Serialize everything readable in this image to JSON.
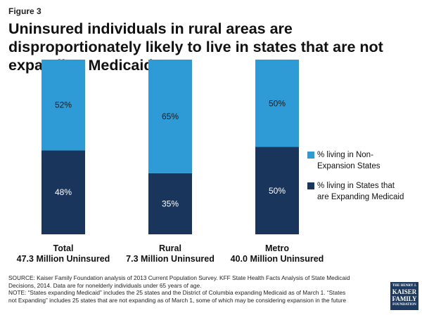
{
  "figure_label": "Figure 3",
  "title": "Uninsured individuals in rural areas are disproportionately likely to live in states that are not expanding Medicaid",
  "colors": {
    "non_expansion": "#2e9ad6",
    "expanding": "#19355c",
    "label_light": "#1a1a1a",
    "label_dark": "#ffffff"
  },
  "chart_data": {
    "type": "bar",
    "stacked": true,
    "percent": true,
    "categories": [
      "Total",
      "Rural",
      "Metro"
    ],
    "category_sublabels": [
      "47.3 Million Uninsured",
      "7.3 Million Uninsured",
      "40.0 Million Uninsured"
    ],
    "ylim": [
      0,
      100
    ],
    "grid": false,
    "legend_position": "right",
    "series": [
      {
        "name": "% living in States that are Expanding Medicaid",
        "values": [
          48,
          35,
          50
        ],
        "labels": [
          "48%",
          "35%",
          "50%"
        ],
        "color": "#19355c"
      },
      {
        "name": "% living in Non-Expansion States",
        "values": [
          52,
          65,
          50
        ],
        "labels": [
          "52%",
          "65%",
          "50%"
        ],
        "color": "#2e9ad6"
      }
    ]
  },
  "legend": {
    "non_expansion": {
      "line1": "% living in Non-",
      "line2": "Expansion States"
    },
    "expanding": {
      "line1": "% living in States that",
      "line2": "are Expanding Medicaid"
    }
  },
  "source": {
    "line1": "SOURCE: Kaiser Family Foundation analysis of 2013 Current Population Survey. KFF State Health Facts Analysis of State Medicaid",
    "line2": "Decisions, 2014. Data are for nonelderly individuals under 65 years of age.",
    "line3": "NOTE: “States expanding Medicaid” includes the 25 states and the District of Columbia expanding Medicaid as of March 1. “States",
    "line4": "not Expanding” includes 25 states that are not expanding as of March 1, some of which may be considering expansion in the future"
  },
  "logo": {
    "line1": "THE HENRY J.",
    "line2": "KAISER",
    "line3": "FAMILY",
    "line4": "FOUNDATION"
  }
}
